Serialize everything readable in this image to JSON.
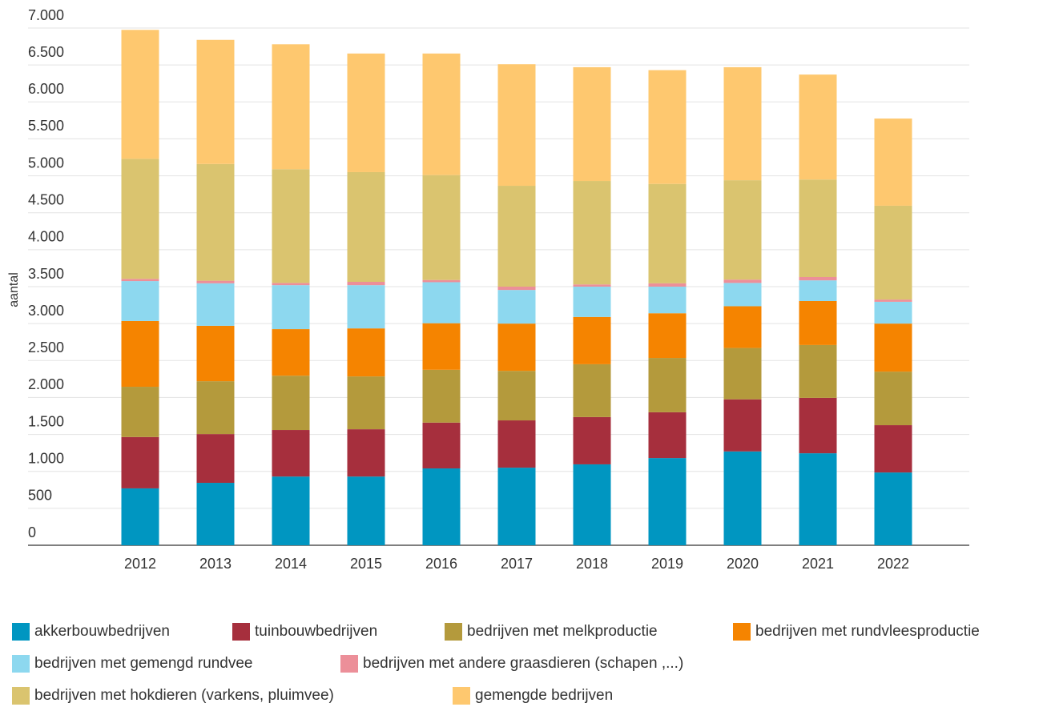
{
  "chart_data": {
    "type": "stacked_bar",
    "y_label": "aantal",
    "categories": [
      "2012",
      "2013",
      "2014",
      "2015",
      "2016",
      "2017",
      "2018",
      "2019",
      "2020",
      "2021",
      "2022"
    ],
    "series": [
      {
        "name": "akkerbouwbedrijven",
        "color": "#0096c1",
        "values": [
          770,
          845,
          930,
          930,
          1040,
          1050,
          1095,
          1180,
          1270,
          1245,
          985
        ]
      },
      {
        "name": "tuinbouwbedrijven",
        "color": "#a62f3d",
        "values": [
          695,
          660,
          630,
          640,
          620,
          640,
          640,
          620,
          705,
          750,
          640
        ]
      },
      {
        "name": "bedrijven met melkproductie",
        "color": "#b49a3c",
        "values": [
          680,
          715,
          735,
          715,
          715,
          670,
          715,
          735,
          695,
          715,
          725
        ]
      },
      {
        "name": "bedrijven met rundvleesproductie",
        "color": "#f58400",
        "values": [
          890,
          750,
          630,
          650,
          630,
          640,
          640,
          605,
          565,
          595,
          650
        ]
      },
      {
        "name": "bedrijven met gemengd rundvee",
        "color": "#8dd8ef",
        "values": [
          540,
          575,
          595,
          585,
          555,
          455,
          410,
          360,
          315,
          280,
          295
        ]
      },
      {
        "name": "bedrijven met andere graasdieren (schapen ,...)",
        "color": "#ec8f99",
        "values": [
          30,
          35,
          30,
          45,
          30,
          45,
          30,
          45,
          45,
          45,
          30
        ]
      },
      {
        "name": "bedrijven met hokdieren (varkens, pluimvee)",
        "color": "#dac46f",
        "values": [
          1625,
          1580,
          1540,
          1485,
          1420,
          1365,
          1400,
          1345,
          1345,
          1320,
          1270
        ]
      },
      {
        "name": "gemengde bedrijven",
        "color": "#fec86f",
        "values": [
          1745,
          1680,
          1690,
          1605,
          1645,
          1645,
          1540,
          1540,
          1530,
          1420,
          1180
        ]
      }
    ],
    "ylim": [
      0,
      7000
    ],
    "yticks": [
      0,
      500,
      {
        "value": 1000,
        "label": "1.000"
      },
      {
        "value": 1500,
        "label": "1.500"
      },
      {
        "value": 2000,
        "label": "2.000"
      },
      {
        "value": 2500,
        "label": "2.500"
      },
      {
        "value": 3000,
        "label": "3.000"
      },
      {
        "value": 3500,
        "label": "3.500"
      },
      {
        "value": 4000,
        "label": "4.000"
      },
      {
        "value": 4500,
        "label": "4.500"
      },
      {
        "value": 5000,
        "label": "5.000"
      },
      {
        "value": 5500,
        "label": "5.500"
      },
      {
        "value": 6000,
        "label": "6.000"
      },
      {
        "value": 6500,
        "label": "6.500"
      },
      {
        "value": 7000,
        "label": "7.000"
      }
    ],
    "grid": true,
    "legend": "bottom"
  }
}
